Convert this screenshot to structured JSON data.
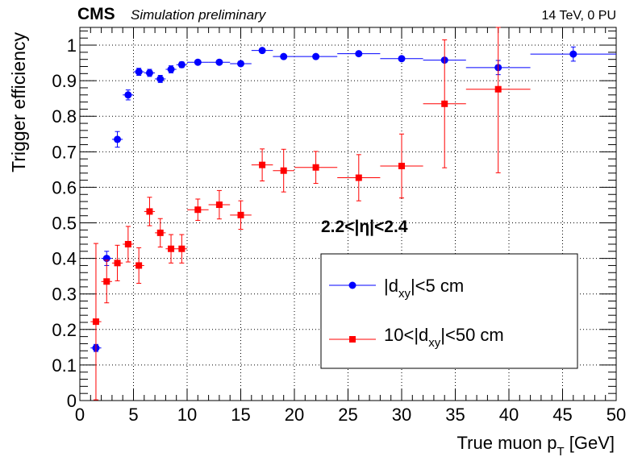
{
  "chart_data": {
    "type": "scatter",
    "experiment": "CMS",
    "experiment_sub": "Simulation preliminary",
    "energy_label": "14 TeV, 0 PU",
    "region_label": "2.2<|η|<2.4",
    "xlabel": "True muon p",
    "xlabel_sub": "T",
    "xlabel_unit": " [GeV]",
    "ylabel": "Trigger efficiency",
    "xlim": [
      0,
      50
    ],
    "ylim": [
      0,
      1.05
    ],
    "xticks": [
      "0",
      "5",
      "10",
      "15",
      "20",
      "25",
      "30",
      "35",
      "40",
      "45",
      "50"
    ],
    "yticks": [
      "0",
      "0.1",
      "0.2",
      "0.3",
      "0.4",
      "0.5",
      "0.6",
      "0.7",
      "0.8",
      "0.9",
      "1"
    ],
    "grid": true,
    "series": [
      {
        "name": "|d",
        "name_sub": "xy",
        "name_tail": "|<5 cm",
        "color": "#0000ff",
        "marker": "circle",
        "points": [
          {
            "x": 1.5,
            "y": 0.148,
            "xerr": 0.5,
            "yerr": 0.01
          },
          {
            "x": 2.5,
            "y": 0.4,
            "xerr": 0.5,
            "yerr": 0.02
          },
          {
            "x": 3.5,
            "y": 0.735,
            "xerr": 0.5,
            "yerr": 0.022
          },
          {
            "x": 4.5,
            "y": 0.86,
            "xerr": 0.5,
            "yerr": 0.014
          },
          {
            "x": 5.5,
            "y": 0.925,
            "xerr": 0.5,
            "yerr": 0.01
          },
          {
            "x": 6.5,
            "y": 0.922,
            "xerr": 0.5,
            "yerr": 0.01
          },
          {
            "x": 7.5,
            "y": 0.905,
            "xerr": 0.5,
            "yerr": 0.01
          },
          {
            "x": 8.5,
            "y": 0.932,
            "xerr": 0.5,
            "yerr": 0.01
          },
          {
            "x": 9.5,
            "y": 0.945,
            "xerr": 0.5,
            "yerr": 0.008
          },
          {
            "x": 11,
            "y": 0.952,
            "xerr": 1,
            "yerr": 0.006
          },
          {
            "x": 13,
            "y": 0.952,
            "xerr": 1,
            "yerr": 0.005
          },
          {
            "x": 15,
            "y": 0.948,
            "xerr": 1,
            "yerr": 0.005
          },
          {
            "x": 17,
            "y": 0.985,
            "xerr": 1,
            "yerr": 0.005
          },
          {
            "x": 19,
            "y": 0.968,
            "xerr": 1,
            "yerr": 0.004
          },
          {
            "x": 22,
            "y": 0.968,
            "xerr": 2,
            "yerr": 0.003
          },
          {
            "x": 26,
            "y": 0.976,
            "xerr": 2,
            "yerr": 0.003
          },
          {
            "x": 30,
            "y": 0.962,
            "xerr": 2,
            "yerr": 0.003
          },
          {
            "x": 34,
            "y": 0.958,
            "xerr": 2,
            "yerr": 0.004
          },
          {
            "x": 39,
            "y": 0.937,
            "xerr": 3,
            "yerr": 0.02
          },
          {
            "x": 46,
            "y": 0.975,
            "xerr": 4,
            "yerr": 0.02
          }
        ]
      },
      {
        "name": "10<|d",
        "name_sub": "xy",
        "name_tail": "|<50 cm",
        "color": "#ff0000",
        "marker": "square",
        "points": [
          {
            "x": 1.5,
            "y": 0.222,
            "xerr": 0.5,
            "yerr": 0.22
          },
          {
            "x": 2.5,
            "y": 0.335,
            "xerr": 0.5,
            "yerr": 0.06
          },
          {
            "x": 3.5,
            "y": 0.387,
            "xerr": 0.5,
            "yerr": 0.05
          },
          {
            "x": 4.5,
            "y": 0.44,
            "xerr": 0.5,
            "yerr": 0.05
          },
          {
            "x": 5.5,
            "y": 0.38,
            "xerr": 0.5,
            "yerr": 0.05
          },
          {
            "x": 6.5,
            "y": 0.532,
            "xerr": 0.5,
            "yerr": 0.04
          },
          {
            "x": 7.5,
            "y": 0.472,
            "xerr": 0.5,
            "yerr": 0.04
          },
          {
            "x": 8.5,
            "y": 0.427,
            "xerr": 0.5,
            "yerr": 0.04
          },
          {
            "x": 9.5,
            "y": 0.427,
            "xerr": 0.5,
            "yerr": 0.04
          },
          {
            "x": 11,
            "y": 0.537,
            "xerr": 1,
            "yerr": 0.03
          },
          {
            "x": 13,
            "y": 0.551,
            "xerr": 1,
            "yerr": 0.04
          },
          {
            "x": 15,
            "y": 0.522,
            "xerr": 1,
            "yerr": 0.04
          },
          {
            "x": 17,
            "y": 0.663,
            "xerr": 1,
            "yerr": 0.045
          },
          {
            "x": 19,
            "y": 0.647,
            "xerr": 1,
            "yerr": 0.06
          },
          {
            "x": 22,
            "y": 0.656,
            "xerr": 2,
            "yerr": 0.045
          },
          {
            "x": 26,
            "y": 0.627,
            "xerr": 2,
            "yerr": 0.065
          },
          {
            "x": 30,
            "y": 0.66,
            "xerr": 2,
            "yerr": 0.09
          },
          {
            "x": 34,
            "y": 0.835,
            "xerr": 2,
            "yerr": 0.18
          },
          {
            "x": 39,
            "y": 0.876,
            "xerr": 3,
            "yerr": 0.235
          }
        ]
      }
    ]
  }
}
